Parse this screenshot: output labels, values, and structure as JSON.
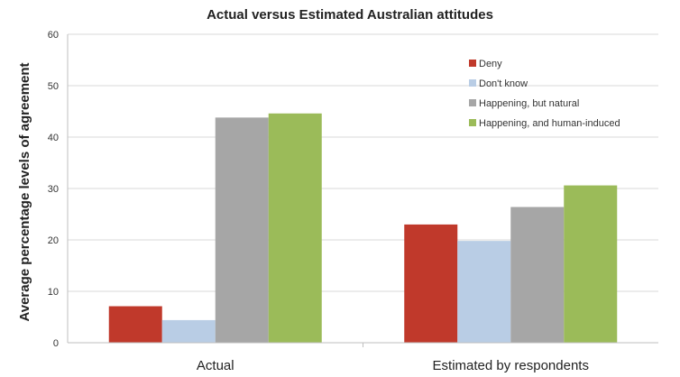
{
  "chart_data": {
    "type": "bar",
    "title": "Actual  versus Estimated Australian attitudes",
    "xlabel": "",
    "ylabel": "Average percentage levels of agreement",
    "ylim": [
      0,
      60
    ],
    "yticks": [
      "0",
      "10",
      "20",
      "30",
      "40",
      "50",
      "60"
    ],
    "grid": true,
    "legend_position": "top-right",
    "categories": [
      "Actual",
      "Estimated by respondents"
    ],
    "series": [
      {
        "name": "Deny",
        "color": "#c0392b",
        "values": [
          7.1,
          23.0
        ]
      },
      {
        "name": "Don't know",
        "color": "#b9cde5",
        "values": [
          4.4,
          19.8
        ]
      },
      {
        "name": "Happening, but natural",
        "color": "#a6a6a6",
        "values": [
          43.8,
          26.4
        ]
      },
      {
        "name": "Happening, and human-induced",
        "color": "#9bbb59",
        "values": [
          44.6,
          30.6
        ]
      }
    ]
  }
}
